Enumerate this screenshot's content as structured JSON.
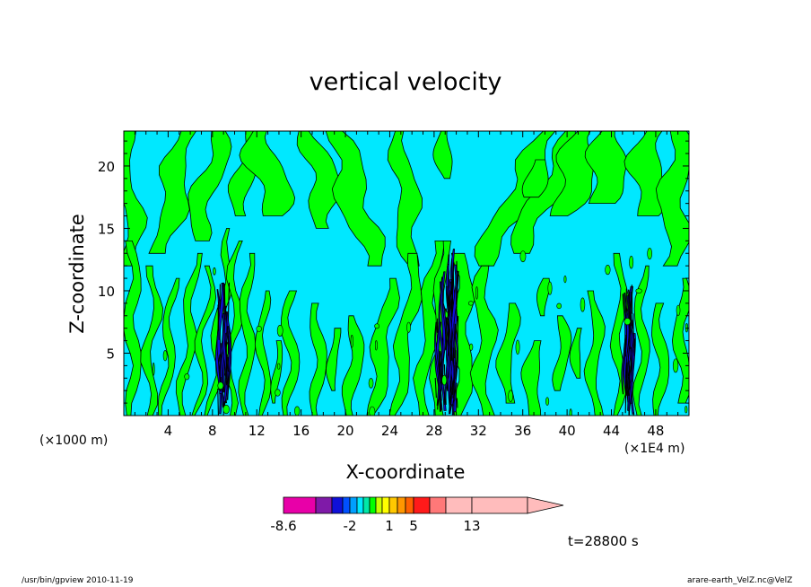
{
  "chart_data": {
    "type": "contour",
    "title": "vertical velocity",
    "xlabel": "X-coordinate",
    "ylabel": "Z-coordinate",
    "x_unit": "(×1000 m)",
    "x_scale_note": "(×1E4 m)",
    "xlim": [
      0,
      51
    ],
    "ylim": [
      0,
      22.8
    ],
    "x_ticks": [
      4,
      8,
      12,
      16,
      20,
      24,
      28,
      32,
      36,
      40,
      44,
      48
    ],
    "y_ticks": [
      5,
      10,
      15,
      20
    ],
    "colorbar": {
      "levels": [
        -8.6,
        -6.8,
        -5.0,
        -3.4,
        -2.0,
        -1.5,
        -1.0,
        -0.5,
        0,
        0.5,
        1.0,
        1.5,
        3.0,
        5.0,
        7.0,
        10.0,
        13.0,
        19.0
      ],
      "colors": [
        "#e800a8",
        "#7f1aa8",
        "#1010d8",
        "#0050ff",
        "#00a0ff",
        "#00e8ff",
        "#00e8a8",
        "#00ff00",
        "#c8ff00",
        "#ffff00",
        "#ffc800",
        "#ff9600",
        "#ff6000",
        "#ff1a1a",
        "#ff7878",
        "#ffbcbc",
        "#ffbcbc"
      ],
      "tick_labels": [
        "-8.6",
        "-2",
        "1",
        "5",
        "13"
      ],
      "tick_values": [
        -8.6,
        -2,
        1,
        5,
        13
      ]
    },
    "time_label": "t=28800 s",
    "background_color": "#00e8ff",
    "updraft_color": "#00ff00",
    "downdraft_core_color": "#1010d8",
    "plumes": [
      {
        "x": 9.0,
        "z_top": 11,
        "intensity": "moderate"
      },
      {
        "x": 29.2,
        "z_top": 13.5,
        "intensity": "strong"
      },
      {
        "x": 45.6,
        "z_top": 10.5,
        "intensity": "moderate"
      }
    ]
  },
  "footer": {
    "left": "/usr/bin/gpview   2010-11-19",
    "right": "arare-earth_VelZ.nc@VelZ"
  }
}
